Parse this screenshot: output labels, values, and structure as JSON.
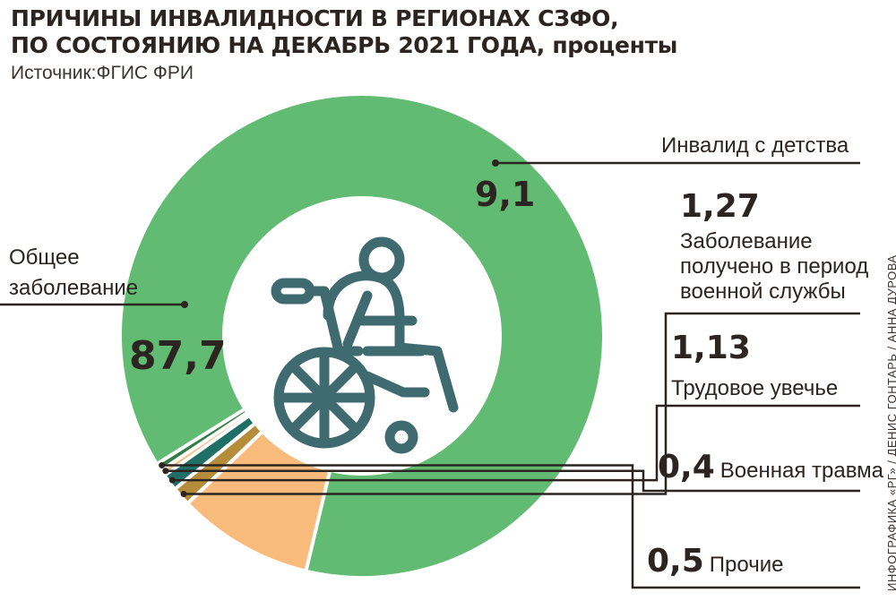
{
  "header": {
    "title_line1": "ПРИЧИНЫ ИНВАЛИДНОСТИ В РЕГИОНАХ СЗФО,",
    "title_line2_main": "ПО СОСТОЯНИЮ НА ДЕКАБРЬ 2021 ГОДА,",
    "title_line2_unit": "проценты",
    "source": "Источник:ФГИС ФРИ"
  },
  "credit": "ИНФОГРАФИКА «РГ» / ДЕНИС ГОНТАРЬ / АННА ДУРОВА",
  "chart_data": {
    "type": "pie",
    "variant": "donut",
    "center_icon": "wheelchair-user-icon",
    "slices": [
      {
        "label_lines": [
          "Общее",
          "заболевание"
        ],
        "value": 87.7,
        "value_text": "87,7",
        "color": "#62bb72"
      },
      {
        "label_lines": [
          "Инвалид с детства"
        ],
        "value": 9.1,
        "value_text": "9,1",
        "color": "#f9bb7c"
      },
      {
        "label_lines": [
          "Заболевание",
          "получено в период",
          "военной службы"
        ],
        "value": 1.27,
        "value_text": "1,27",
        "color": "#b58d3a"
      },
      {
        "label_lines": [
          "Трудовое увечье"
        ],
        "value": 1.13,
        "value_text": "1,13",
        "color": "#1f6f66"
      },
      {
        "label_lines": [
          "Военная травма"
        ],
        "value": 0.4,
        "value_text": "0,4",
        "color": "#f9bb7c"
      },
      {
        "label_lines": [
          "Прочие"
        ],
        "value": 0.5,
        "value_text": "0,5",
        "color": "#2f7d45"
      }
    ]
  },
  "colors": {
    "text": "#2b2420",
    "icon": "#3f6a70",
    "leader_line": "#2b2420"
  }
}
